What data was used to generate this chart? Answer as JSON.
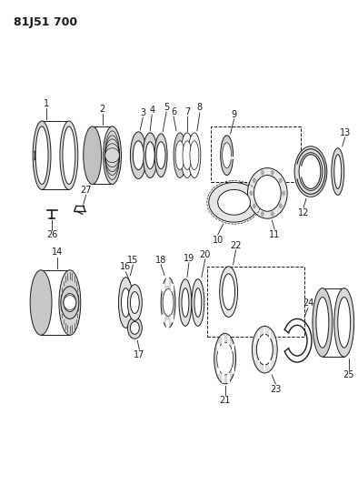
{
  "title": "81J51 700",
  "bg_color": "#ffffff",
  "line_color": "#1a1a1a",
  "title_fontsize": 9,
  "label_fontsize": 7,
  "fig_width": 3.94,
  "fig_height": 5.33,
  "dpi": 100
}
